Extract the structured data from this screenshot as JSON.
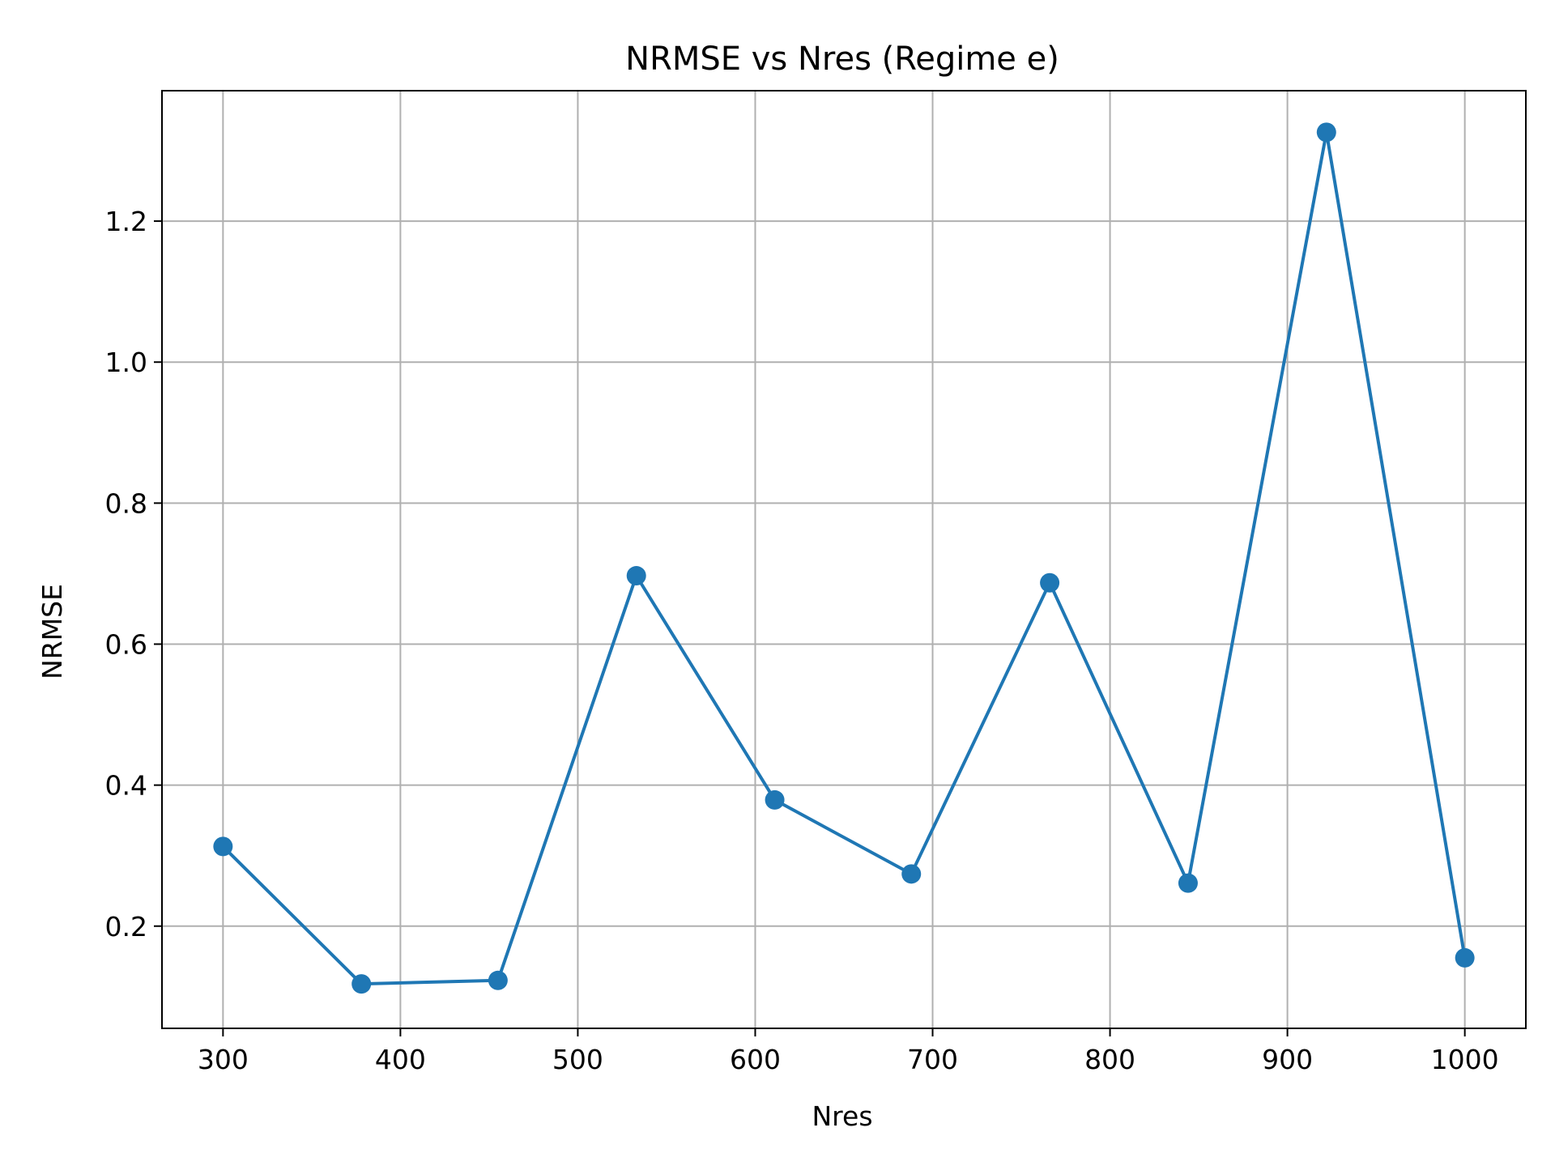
{
  "chart_data": {
    "type": "line",
    "title": "NRMSE vs Nres (Regime e)",
    "xlabel": "Nres",
    "ylabel": "NRMSE",
    "xlim": [
      265.6,
      1034.4
    ],
    "ylim": [
      0.055,
      1.385
    ],
    "xticks": [
      300,
      400,
      500,
      600,
      700,
      800,
      900,
      1000
    ],
    "xtick_labels": [
      "300",
      "400",
      "500",
      "600",
      "700",
      "800",
      "900",
      "1000"
    ],
    "yticks": [
      0.2,
      0.4,
      0.6,
      0.8,
      1.0,
      1.2
    ],
    "ytick_labels": [
      "0.2",
      "0.4",
      "0.6",
      "0.8",
      "1.0",
      "1.2"
    ],
    "grid": true,
    "series": [
      {
        "name": "NRMSE",
        "color": "#1f77b4",
        "marker": "circle",
        "x": [
          300,
          378,
          455,
          533,
          611,
          688,
          766,
          844,
          922,
          1000
        ],
        "y": [
          0.313,
          0.118,
          0.123,
          0.697,
          0.379,
          0.274,
          0.687,
          0.261,
          1.326,
          0.155
        ]
      }
    ]
  }
}
